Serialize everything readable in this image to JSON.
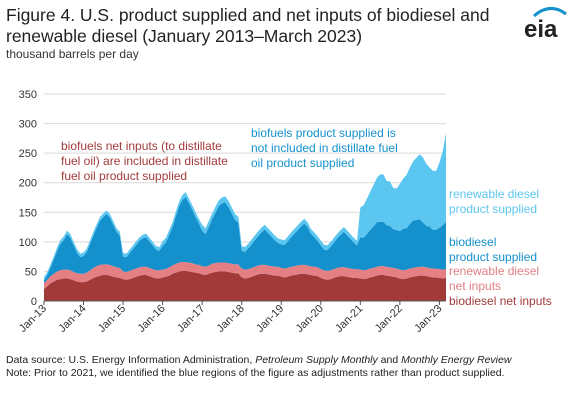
{
  "header": {
    "title": "Figure 4. U.S. product supplied and net inputs of biodiesel and renewable diesel (January 2013–March 2023)",
    "units": "thousand barrels per day",
    "logo_text": "eia"
  },
  "footer": {
    "source_prefix": "Data source: U.S. Energy Information Administration, ",
    "source_pub1": "Petroleum Supply Monthly",
    "source_and": " and ",
    "source_pub2": "Monthly Energy Review",
    "note": "Note: Prior to 2021, we identified the blue regions of the figure as adjustments rather than product supplied."
  },
  "colors": {
    "biodiesel_net_inputs": "#a33a3a",
    "renewable_diesel_net_inputs": "#e47f83",
    "biodiesel_product_supplied": "#1490cc",
    "renewable_diesel_product_supplied": "#5bc6f0",
    "annotation_red": "#a33a3a",
    "annotation_blue": "#1490cc",
    "annotation_lightblue": "#5bc6f0"
  },
  "annotations": {
    "net_inputs_note": [
      "biofuels net inputs (to distillate",
      "fuel oil) are included in distillate",
      "fuel oil product supplied"
    ],
    "product_supplied_note": [
      "biofuels product supplied is",
      "not included in distillate fuel",
      "oil product supplied"
    ]
  },
  "chart_data": {
    "type": "area",
    "stacked": true,
    "ylim": [
      0,
      350
    ],
    "yticks": [
      0,
      50,
      100,
      150,
      200,
      250,
      300,
      350
    ],
    "xtick_labels": [
      "Jan-13",
      "Jan-14",
      "Jan-15",
      "Jan-16",
      "Jan-17",
      "Jan-18",
      "Jan-19",
      "Jan-20",
      "Jan-21",
      "Jan-22",
      "Jan-23"
    ],
    "grid": true,
    "x_start": "2013-01",
    "x_end": "2023-03",
    "series": [
      {
        "name": "biodiesel net inputs",
        "key": "biodiesel_net_inputs",
        "values": [
          20,
          25,
          30,
          33,
          36,
          37,
          38,
          38,
          37,
          35,
          33,
          32,
          32,
          33,
          36,
          39,
          41,
          43,
          44,
          44,
          43,
          41,
          40,
          39,
          37,
          36,
          37,
          39,
          41,
          43,
          44,
          44,
          42,
          40,
          38,
          38,
          40,
          41,
          43,
          46,
          48,
          50,
          51,
          51,
          50,
          49,
          48,
          47,
          45,
          44,
          46,
          48,
          49,
          50,
          50,
          50,
          49,
          48,
          47,
          47,
          40,
          38,
          39,
          41,
          43,
          45,
          46,
          46,
          45,
          44,
          43,
          43,
          41,
          40,
          41,
          43,
          44,
          45,
          46,
          46,
          45,
          44,
          43,
          42,
          39,
          37,
          36,
          37,
          39,
          41,
          42,
          42,
          41,
          40,
          39,
          39,
          38,
          37,
          38,
          40,
          41,
          43,
          44,
          44,
          43,
          42,
          41,
          40,
          38,
          37,
          38,
          40,
          41,
          42,
          43,
          43,
          42,
          41,
          40,
          40,
          39,
          38,
          39
        ]
      },
      {
        "name": "renewable diesel net inputs",
        "key": "renewable_diesel_net_inputs",
        "values": [
          10,
          11,
          12,
          13,
          14,
          15,
          15,
          15,
          15,
          14,
          14,
          14,
          14,
          15,
          16,
          17,
          18,
          18,
          18,
          18,
          18,
          18,
          17,
          17,
          13,
          13,
          14,
          14,
          14,
          14,
          14,
          14,
          14,
          14,
          14,
          14,
          13,
          13,
          14,
          14,
          15,
          15,
          15,
          15,
          15,
          15,
          14,
          14,
          14,
          14,
          14,
          15,
          15,
          15,
          15,
          15,
          15,
          15,
          15,
          15,
          15,
          15,
          15,
          15,
          15,
          15,
          15,
          15,
          15,
          15,
          15,
          15,
          15,
          15,
          15,
          15,
          15,
          15,
          15,
          15,
          15,
          15,
          15,
          15,
          15,
          15,
          15,
          15,
          15,
          15,
          15,
          15,
          15,
          15,
          15,
          15,
          15,
          15,
          15,
          15,
          15,
          15,
          15,
          15,
          15,
          15,
          15,
          15,
          15,
          15,
          15,
          15,
          15,
          15,
          15,
          15,
          15,
          15,
          15,
          15,
          15,
          15,
          15
        ]
      },
      {
        "name": "biodiesel product supplied",
        "key": "biodiesel_product_supplied",
        "values": [
          5,
          8,
          15,
          25,
          35,
          45,
          50,
          60,
          55,
          45,
          35,
          28,
          30,
          35,
          45,
          55,
          65,
          75,
          80,
          85,
          80,
          70,
          60,
          55,
          25,
          25,
          30,
          35,
          40,
          45,
          48,
          50,
          45,
          40,
          35,
          33,
          40,
          45,
          55,
          65,
          80,
          95,
          105,
          110,
          100,
          90,
          80,
          70,
          60,
          55,
          65,
          75,
          85,
          95,
          100,
          102,
          95,
          85,
          75,
          70,
          30,
          30,
          35,
          40,
          45,
          50,
          55,
          60,
          55,
          50,
          45,
          40,
          40,
          40,
          45,
          50,
          55,
          60,
          65,
          70,
          65,
          55,
          50,
          45,
          40,
          35,
          35,
          40,
          45,
          50,
          55,
          60,
          55,
          50,
          45,
          40,
          55,
          55,
          60,
          65,
          70,
          75,
          75,
          75,
          70,
          70,
          65,
          65,
          65,
          70,
          70,
          75,
          80,
          80,
          80,
          75,
          70,
          70,
          65,
          65,
          70,
          75,
          80
        ]
      },
      {
        "name": "renewable diesel product supplied",
        "key": "renewable_diesel_product_supplied",
        "values": [
          5,
          5,
          5,
          5,
          6,
          6,
          6,
          6,
          6,
          6,
          6,
          6,
          6,
          6,
          6,
          6,
          6,
          6,
          6,
          6,
          6,
          6,
          6,
          6,
          6,
          6,
          6,
          6,
          6,
          6,
          6,
          6,
          6,
          6,
          6,
          6,
          8,
          8,
          8,
          8,
          8,
          8,
          8,
          8,
          8,
          8,
          8,
          8,
          10,
          10,
          10,
          10,
          10,
          10,
          10,
          10,
          10,
          10,
          10,
          10,
          8,
          8,
          8,
          8,
          8,
          8,
          8,
          8,
          8,
          8,
          8,
          8,
          8,
          8,
          8,
          8,
          8,
          8,
          8,
          8,
          8,
          8,
          8,
          8,
          8,
          8,
          8,
          8,
          8,
          8,
          8,
          8,
          8,
          8,
          8,
          8,
          50,
          55,
          60,
          65,
          70,
          75,
          80,
          80,
          75,
          75,
          70,
          70,
          80,
          85,
          90,
          95,
          100,
          105,
          110,
          110,
          105,
          100,
          100,
          100,
          110,
          125,
          150
        ]
      }
    ],
    "series_labels": [
      {
        "key": "renewable_diesel_product_supplied",
        "lines": [
          "renewable diesel",
          "product supplied"
        ]
      },
      {
        "key": "biodiesel_product_supplied",
        "lines": [
          "biodiesel",
          "product supplied"
        ]
      },
      {
        "key": "renewable_diesel_net_inputs",
        "lines": [
          "renewable diesel",
          "net inputs"
        ]
      },
      {
        "key": "biodiesel_net_inputs",
        "lines": [
          "biodiesel net inputs"
        ]
      }
    ]
  }
}
